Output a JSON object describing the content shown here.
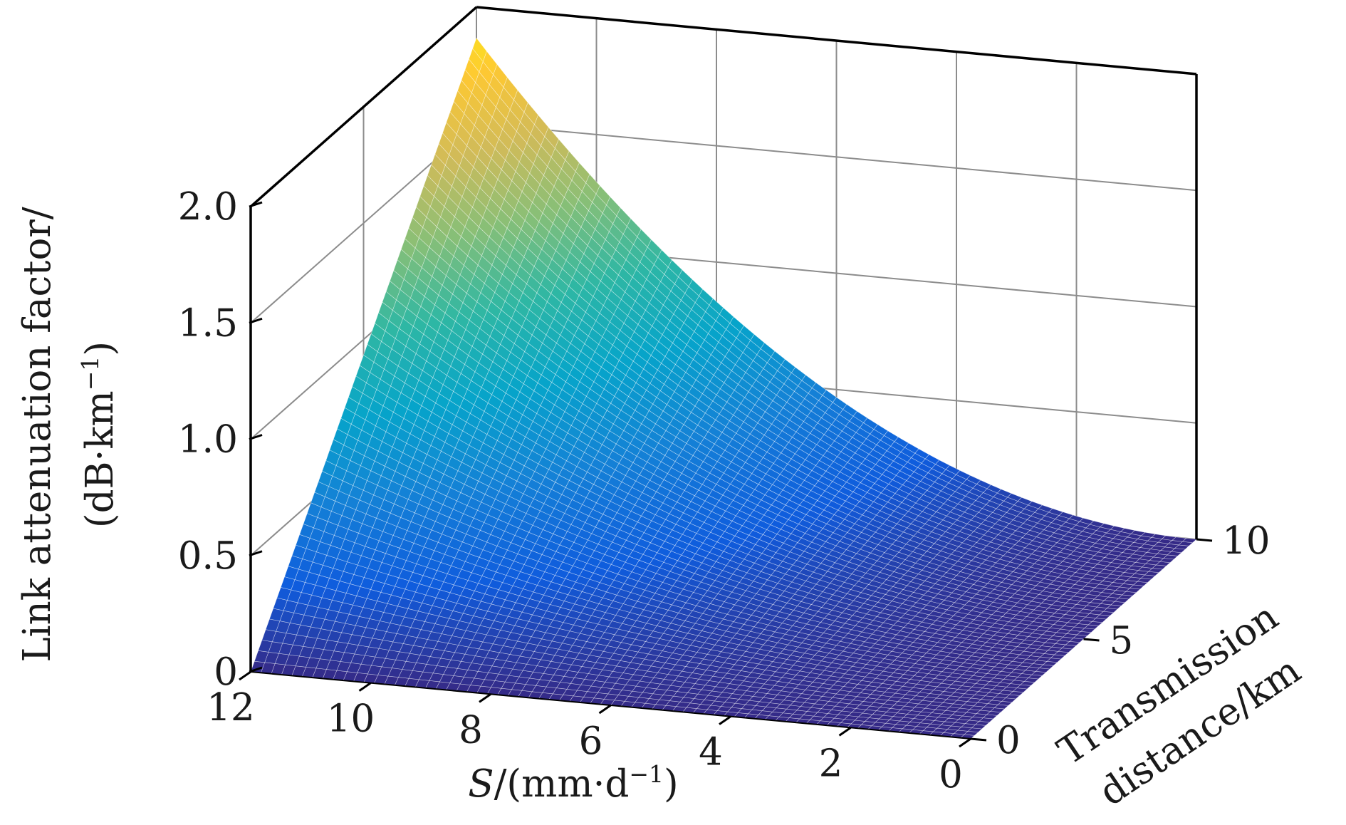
{
  "chart_data": {
    "type": "surface",
    "title": "",
    "zlabel_line1": "Link attenuation factor/",
    "zlabel_line2": "(dB·km",
    "zlabel_sup": "−1",
    "zlabel_close": ")",
    "xlabel_var": "S",
    "xlabel_unit": "/(mm·d",
    "xlabel_sup": "−1",
    "xlabel_close": ")",
    "ylabel_line1": "Transmission",
    "ylabel_line2": "distance/km",
    "x_ticks": [
      "12",
      "10",
      "8",
      "6",
      "4",
      "2",
      "0"
    ],
    "x_tick_values": [
      12,
      10,
      8,
      6,
      4,
      2,
      0
    ],
    "y_ticks": [
      "0",
      "5",
      "10"
    ],
    "y_tick_values": [
      0,
      5,
      10
    ],
    "z_ticks": [
      "0",
      "0.5",
      "1.0",
      "1.5",
      "2.0"
    ],
    "z_tick_values": [
      0,
      0.5,
      1.0,
      1.5,
      2.0
    ],
    "xlim": [
      0,
      12
    ],
    "ylim": [
      0,
      10
    ],
    "zlim": [
      0,
      2.0
    ],
    "grid": true,
    "colormap": "parula",
    "colormap_stops": [
      "#352a87",
      "#0f5cdd",
      "#1481d6",
      "#06a4ca",
      "#2eb7a4",
      "#87bf77",
      "#d1bb59",
      "#fec832",
      "#f9fb0e"
    ],
    "surface_samples": {
      "S": [
        0,
        2,
        4,
        6,
        8,
        10,
        12
      ],
      "distance": [
        0,
        5,
        10
      ],
      "attenuation": [
        [
          0,
          0.0,
          0.0
        ],
        [
          0,
          0.02,
          0.06
        ],
        [
          0,
          0.07,
          0.22
        ],
        [
          0,
          0.16,
          0.5
        ],
        [
          0,
          0.3,
          0.89
        ],
        [
          0,
          0.46,
          1.39
        ],
        [
          0,
          0.67,
          2.0
        ]
      ]
    }
  }
}
